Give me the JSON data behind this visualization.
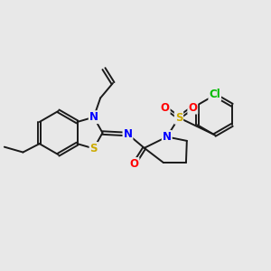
{
  "background_color": "#e8e8e8",
  "bond_color": "#1a1a1a",
  "atom_colors": {
    "N": "#0000ff",
    "S": "#ccaa00",
    "O": "#ff0000",
    "Cl": "#00bb00",
    "C": "#1a1a1a"
  },
  "font_size_atom": 8.5,
  "figsize": [
    3.0,
    3.0
  ],
  "dpi": 100
}
